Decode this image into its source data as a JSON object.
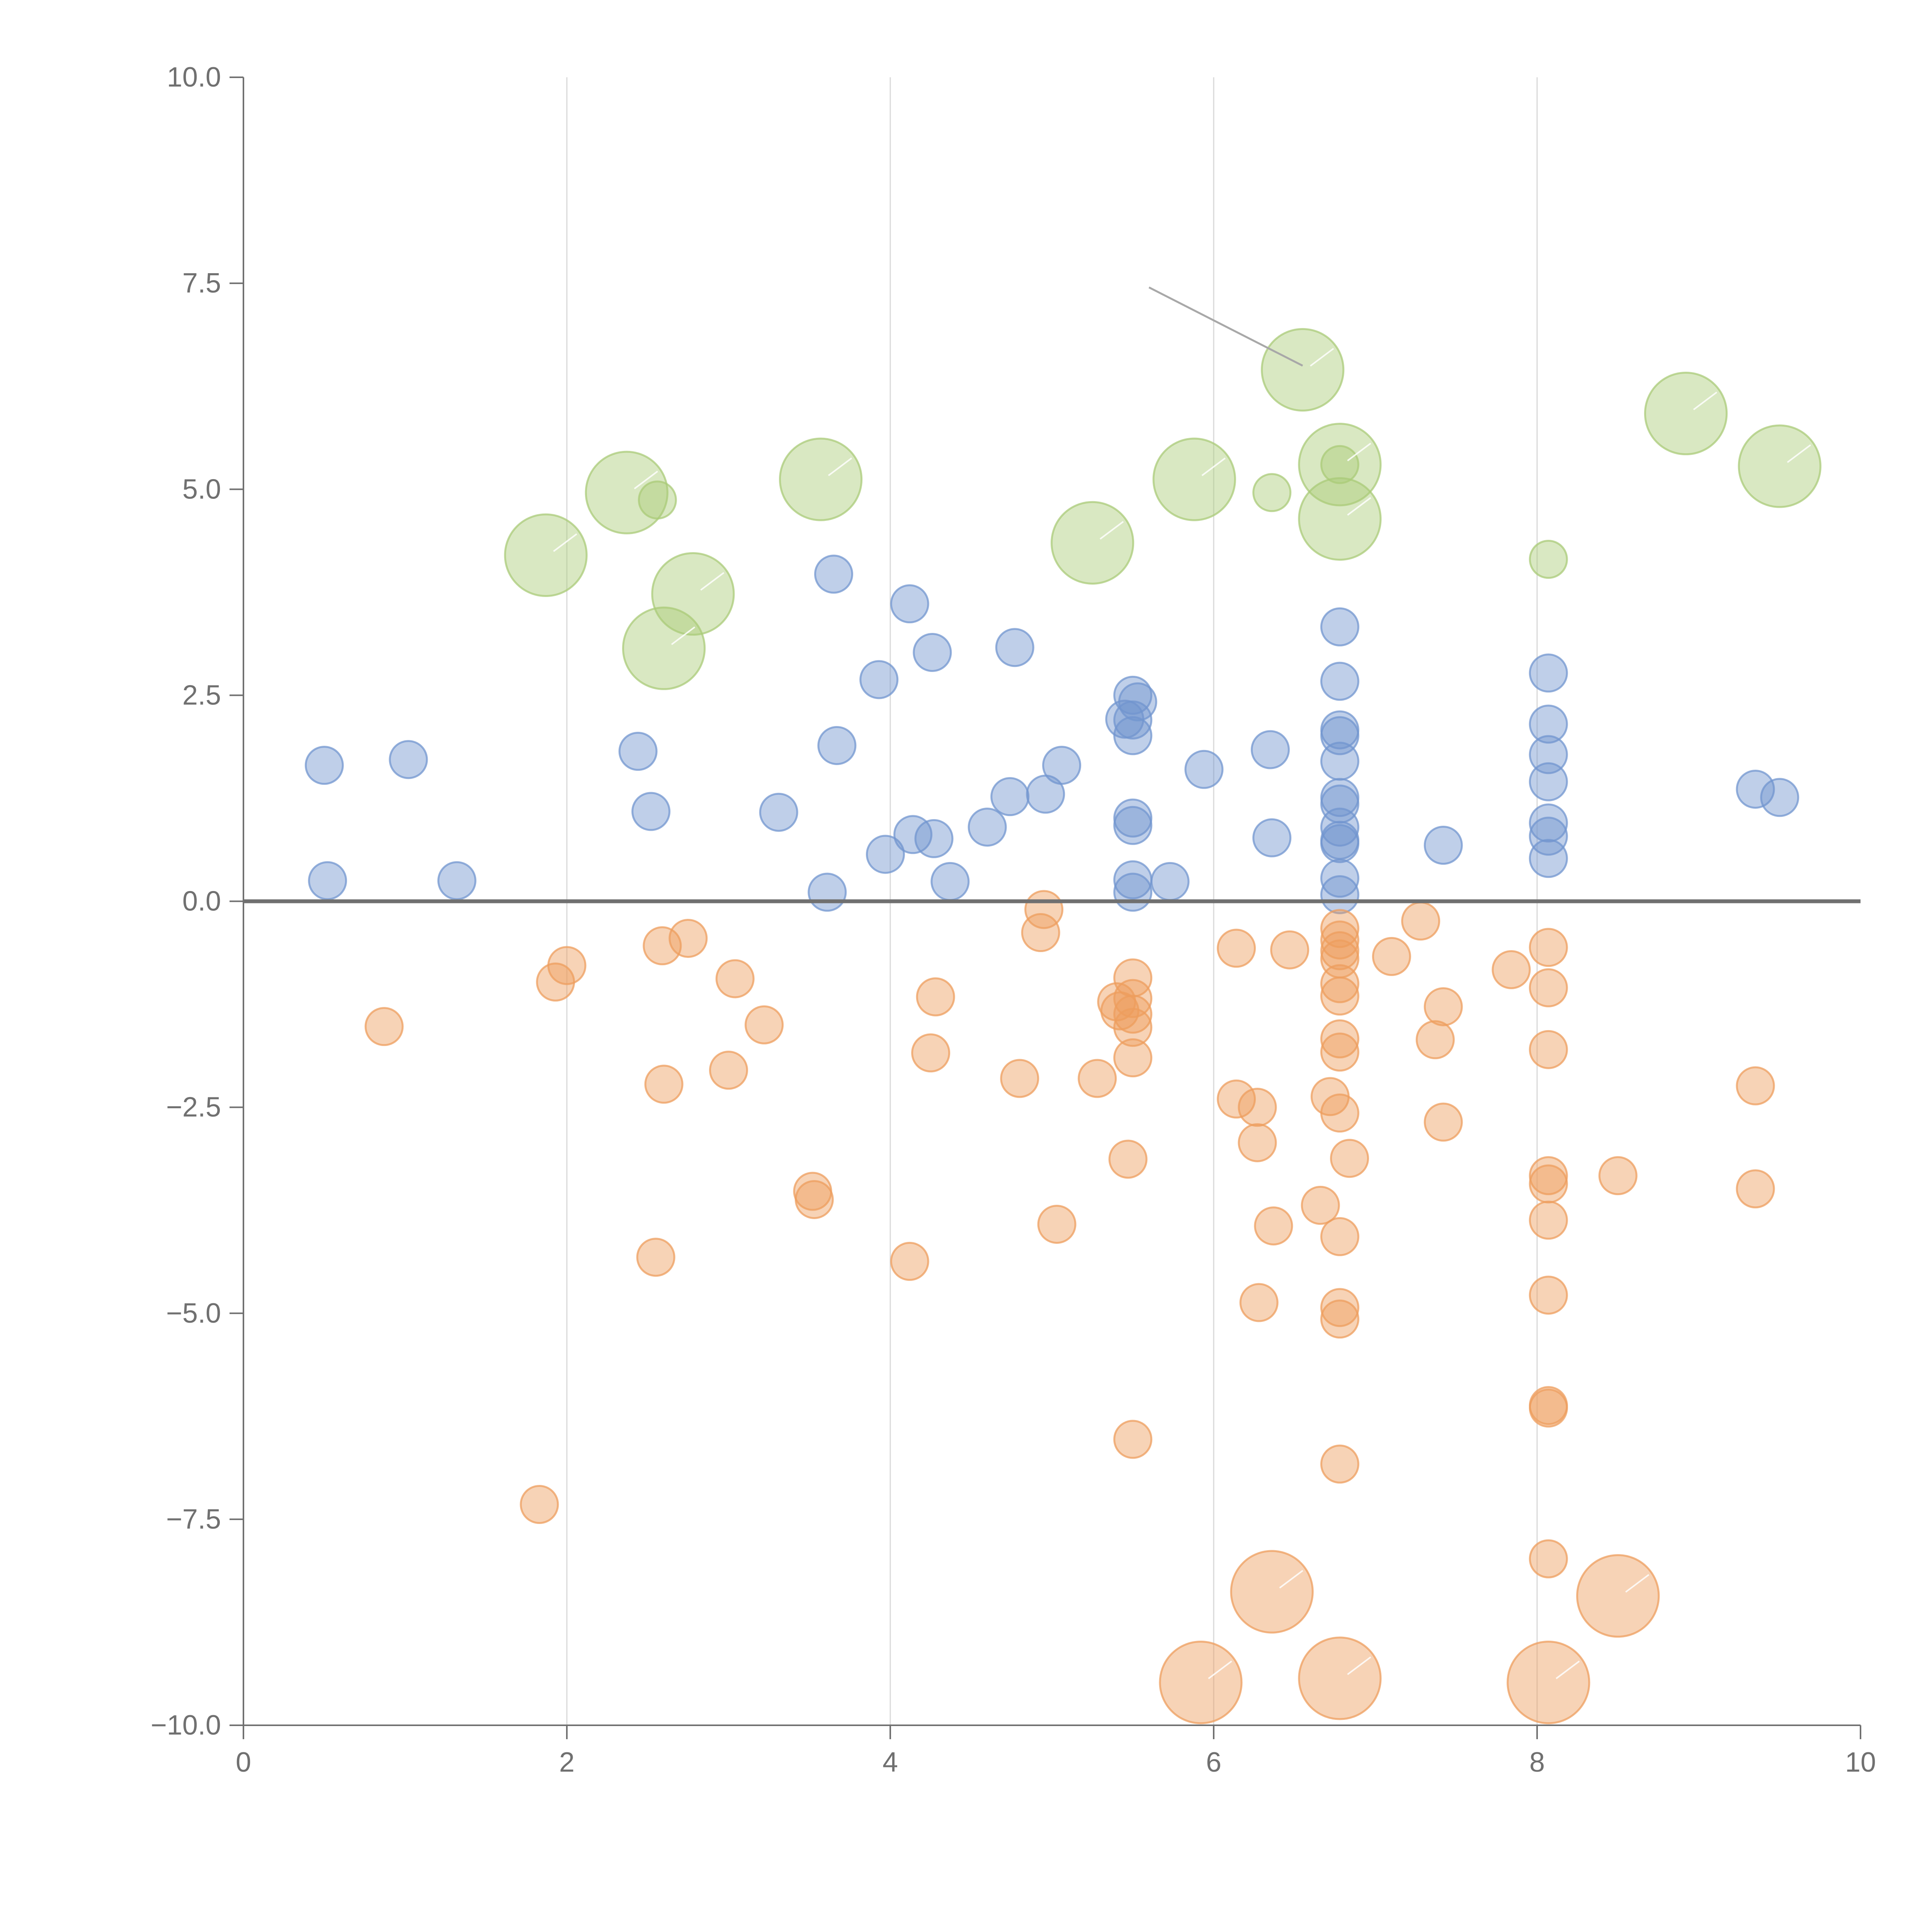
{
  "chart_data": {
    "type": "scatter",
    "variant": "bubble",
    "title": "",
    "xlabel": "",
    "ylabel": "",
    "xlim": [
      0,
      10
    ],
    "ylim": [
      -10,
      10
    ],
    "x_ticks": [
      0,
      2,
      4,
      6,
      8,
      10
    ],
    "x_tick_labels": [
      "0",
      "2",
      "4",
      "6",
      "8",
      "10"
    ],
    "y_ticks": [
      10,
      7.5,
      5,
      2.5,
      0,
      -2.5,
      -5,
      -7.5,
      -10
    ],
    "y_tick_labels": [
      "10.0",
      "7.5",
      "5.0",
      "2.5",
      "0.0",
      "−2.5",
      "−5.0",
      "−7.5",
      "−10.0"
    ],
    "grid": "vertical",
    "reference_line": {
      "y": 0
    },
    "leader_line": {
      "from": [
        5.6,
        7.45
      ],
      "to": [
        6.55,
        6.5
      ]
    },
    "colors": {
      "blue": "#7295cf",
      "orange": "#ed9e5e",
      "green": "#aacb78",
      "axis": "#707070",
      "grid": "#d9d9d9"
    },
    "series": [
      {
        "name": "blue",
        "color": "#7295cf",
        "points": [
          [
            0.5,
            1.65,
            1
          ],
          [
            0.52,
            0.25,
            1
          ],
          [
            1.02,
            1.72,
            1
          ],
          [
            1.32,
            0.25,
            1
          ],
          [
            2.44,
            1.82,
            1
          ],
          [
            2.52,
            1.09,
            1
          ],
          [
            3.31,
            1.08,
            1
          ],
          [
            3.61,
            0.11,
            1
          ],
          [
            3.65,
            3.97,
            1
          ],
          [
            3.67,
            1.89,
            1
          ],
          [
            3.93,
            2.69,
            1
          ],
          [
            3.97,
            0.57,
            1
          ],
          [
            4.12,
            3.61,
            1
          ],
          [
            4.14,
            0.81,
            1
          ],
          [
            4.26,
            3.02,
            1
          ],
          [
            4.27,
            0.76,
            1
          ],
          [
            4.37,
            0.24,
            1
          ],
          [
            4.6,
            0.9,
            1
          ],
          [
            4.74,
            1.27,
            1
          ],
          [
            4.77,
            3.08,
            1
          ],
          [
            4.96,
            1.3,
            1
          ],
          [
            5.06,
            1.65,
            1
          ],
          [
            5.45,
            2.21,
            1
          ],
          [
            5.5,
            2.5,
            1
          ],
          [
            5.5,
            2.2,
            1
          ],
          [
            5.5,
            2.01,
            1
          ],
          [
            5.53,
            2.42,
            1
          ],
          [
            5.5,
            1.01,
            1
          ],
          [
            5.5,
            0.92,
            1
          ],
          [
            5.5,
            0.26,
            1
          ],
          [
            5.5,
            0.11,
            1
          ],
          [
            5.73,
            0.24,
            1
          ],
          [
            5.94,
            1.6,
            1
          ],
          [
            6.35,
            1.84,
            1
          ],
          [
            6.36,
            0.77,
            1
          ],
          [
            6.78,
            3.33,
            1
          ],
          [
            6.78,
            2.67,
            1
          ],
          [
            6.78,
            2.08,
            1
          ],
          [
            6.78,
            2.01,
            1
          ],
          [
            6.78,
            1.7,
            1
          ],
          [
            6.78,
            1.26,
            1
          ],
          [
            6.78,
            1.18,
            1
          ],
          [
            6.78,
            0.9,
            1
          ],
          [
            6.78,
            0.74,
            1
          ],
          [
            6.78,
            0.7,
            1
          ],
          [
            6.78,
            0.28,
            1
          ],
          [
            6.78,
            0.08,
            1
          ],
          [
            7.42,
            0.68,
            1
          ],
          [
            8.07,
            2.77,
            1
          ],
          [
            8.07,
            2.15,
            1
          ],
          [
            8.07,
            1.78,
            1
          ],
          [
            8.07,
            1.45,
            1
          ],
          [
            8.07,
            0.95,
            1
          ],
          [
            8.07,
            0.79,
            1
          ],
          [
            8.07,
            0.52,
            1
          ],
          [
            9.35,
            1.36,
            1
          ],
          [
            9.5,
            1.26,
            1
          ]
        ]
      },
      {
        "name": "orange",
        "color": "#ed9e5e",
        "points": [
          [
            0.87,
            -1.52,
            1
          ],
          [
            1.83,
            -7.32,
            1
          ],
          [
            1.93,
            -0.98,
            1
          ],
          [
            2.0,
            -0.78,
            1
          ],
          [
            2.55,
            -4.32,
            1
          ],
          [
            2.59,
            -0.54,
            1
          ],
          [
            2.6,
            -2.22,
            1
          ],
          [
            2.75,
            -0.45,
            1
          ],
          [
            3.0,
            -2.05,
            1
          ],
          [
            3.04,
            -0.94,
            1
          ],
          [
            3.22,
            -1.5,
            1
          ],
          [
            3.52,
            -3.52,
            1
          ],
          [
            3.53,
            -3.62,
            1
          ],
          [
            4.12,
            -4.37,
            1
          ],
          [
            4.25,
            -1.84,
            1
          ],
          [
            4.28,
            -1.16,
            1
          ],
          [
            4.8,
            -2.15,
            1
          ],
          [
            4.93,
            -0.38,
            1
          ],
          [
            4.95,
            -0.1,
            1
          ],
          [
            5.03,
            -3.92,
            1
          ],
          [
            5.28,
            -2.15,
            1
          ],
          [
            5.4,
            -1.22,
            1
          ],
          [
            5.42,
            -1.33,
            1
          ],
          [
            5.47,
            -3.13,
            1
          ],
          [
            5.5,
            -0.93,
            1
          ],
          [
            5.5,
            -1.18,
            1
          ],
          [
            5.5,
            -1.37,
            1
          ],
          [
            5.5,
            -1.53,
            1
          ],
          [
            5.5,
            -1.9,
            1
          ],
          [
            5.5,
            -6.53,
            1
          ],
          [
            6.14,
            -0.57,
            1
          ],
          [
            6.14,
            -2.4,
            1
          ],
          [
            6.27,
            -2.5,
            1
          ],
          [
            6.27,
            -2.93,
            1
          ],
          [
            6.28,
            -4.87,
            1
          ],
          [
            6.37,
            -3.94,
            1
          ],
          [
            6.47,
            -0.59,
            1
          ],
          [
            6.66,
            -3.69,
            1
          ],
          [
            6.72,
            -2.37,
            1
          ],
          [
            6.78,
            -0.33,
            1
          ],
          [
            6.78,
            -0.47,
            1
          ],
          [
            6.78,
            -0.6,
            1
          ],
          [
            6.78,
            -0.7,
            1
          ],
          [
            6.78,
            -1.0,
            1
          ],
          [
            6.78,
            -1.15,
            1
          ],
          [
            6.78,
            -1.67,
            1
          ],
          [
            6.78,
            -1.83,
            1
          ],
          [
            6.78,
            -2.57,
            1
          ],
          [
            6.78,
            -4.07,
            1
          ],
          [
            6.78,
            -4.93,
            1
          ],
          [
            6.78,
            -5.07,
            1
          ],
          [
            6.78,
            -6.83,
            1
          ],
          [
            6.84,
            -3.12,
            1
          ],
          [
            7.1,
            -0.67,
            1
          ],
          [
            7.28,
            -0.24,
            1
          ],
          [
            7.37,
            -1.68,
            1
          ],
          [
            7.42,
            -1.28,
            1
          ],
          [
            7.42,
            -2.68,
            1
          ],
          [
            7.84,
            -0.83,
            1
          ],
          [
            8.07,
            -0.56,
            1
          ],
          [
            8.07,
            -1.05,
            1
          ],
          [
            8.07,
            -1.8,
            1
          ],
          [
            8.07,
            -3.33,
            1
          ],
          [
            8.07,
            -3.43,
            1
          ],
          [
            8.07,
            -3.87,
            1
          ],
          [
            8.07,
            -4.78,
            1
          ],
          [
            8.07,
            -6.12,
            1
          ],
          [
            8.07,
            -6.15,
            1
          ],
          [
            8.07,
            -7.98,
            1
          ],
          [
            8.5,
            -3.33,
            1
          ],
          [
            9.35,
            -2.24,
            1
          ],
          [
            9.35,
            -3.49,
            1
          ],
          [
            6.36,
            -8.38,
            2.2
          ],
          [
            5.92,
            -9.48,
            2.2
          ],
          [
            6.78,
            -9.43,
            2.2
          ],
          [
            8.07,
            -9.48,
            2.2
          ],
          [
            8.5,
            -8.43,
            2.2
          ]
        ]
      },
      {
        "name": "green",
        "color": "#aacb78",
        "points": [
          [
            2.56,
            4.87,
            1
          ],
          [
            6.36,
            4.96,
            1
          ],
          [
            6.78,
            5.3,
            1
          ],
          [
            8.07,
            4.15,
            1
          ],
          [
            1.87,
            4.2,
            2.2
          ],
          [
            2.37,
            4.96,
            2.2
          ],
          [
            2.6,
            3.07,
            2.2
          ],
          [
            2.78,
            3.73,
            2.2
          ],
          [
            3.57,
            5.12,
            2.2
          ],
          [
            5.25,
            4.35,
            2.2
          ],
          [
            5.88,
            5.12,
            2.2
          ],
          [
            6.55,
            6.45,
            2.2
          ],
          [
            6.78,
            5.3,
            2.2
          ],
          [
            6.78,
            4.64,
            2.2
          ],
          [
            8.92,
            5.92,
            2.2
          ],
          [
            9.5,
            5.28,
            2.2
          ]
        ]
      }
    ]
  }
}
